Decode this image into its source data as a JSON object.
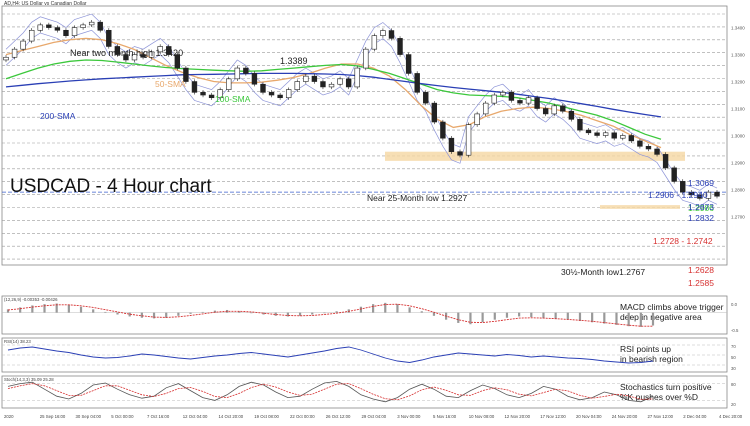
{
  "header": {
    "symbol_text": "AD,H4: US Dollar vs Canadian Dollar"
  },
  "chart_data": {
    "type": "line",
    "title": "USDCAD - 4 Hour chart",
    "ylim": [
      1.252,
      1.348
    ],
    "y_ticks": [
      1.27,
      1.28,
      1.29,
      1.3,
      1.31,
      1.32,
      1.33,
      1.34
    ],
    "x_labels": [
      "2020",
      "25 Sep 16:00",
      "30 Sep 04:00",
      "5 Oct 00:00",
      "7 Oct 16:00",
      "12 Oct 04:00",
      "14 Oct 20:00",
      "19 Oct 08:00",
      "22 Oct 00:00",
      "26 Oct 12:00",
      "29 Oct 04:00",
      "3 Nov 00:00",
      "5 Nov 16:00",
      "10 Nov 08:00",
      "12 Nov 20:00",
      "17 Nov 12:00",
      "20 Nov 04:00",
      "24 Nov 20:00",
      "27 Nov 12:00",
      "2 Dec 04:00",
      "4 Dec 20:00"
    ],
    "price": [
      1.329,
      1.332,
      1.335,
      1.339,
      1.341,
      1.34,
      1.339,
      1.337,
      1.34,
      1.341,
      1.342,
      1.339,
      1.333,
      1.33,
      1.328,
      1.33,
      1.329,
      1.331,
      1.333,
      1.33,
      1.325,
      1.32,
      1.316,
      1.315,
      1.314,
      1.317,
      1.321,
      1.325,
      1.323,
      1.319,
      1.316,
      1.315,
      1.314,
      1.317,
      1.32,
      1.322,
      1.32,
      1.318,
      1.319,
      1.321,
      1.318,
      1.325,
      1.332,
      1.337,
      1.3389,
      1.336,
      1.33,
      1.323,
      1.316,
      1.312,
      1.305,
      1.299,
      1.294,
      1.2927,
      1.304,
      1.308,
      1.312,
      1.315,
      1.316,
      1.313,
      1.312,
      1.314,
      1.31,
      1.308,
      1.311,
      1.309,
      1.306,
      1.302,
      1.301,
      1.3,
      1.301,
      1.299,
      1.3,
      1.298,
      1.296,
      1.295,
      1.293,
      1.288,
      1.283,
      1.279,
      1.278,
      1.2767,
      1.279,
      1.2775
    ],
    "series": [
      {
        "name": "50-SMA",
        "color": "#e8a86c",
        "values": [
          1.33,
          1.3315,
          1.333,
          1.3345,
          1.3355,
          1.336,
          1.3355,
          1.334,
          1.332,
          1.329,
          1.326,
          1.3235,
          1.3215,
          1.32,
          1.3195,
          1.3195,
          1.3198,
          1.3205,
          1.3215,
          1.323,
          1.325,
          1.3265,
          1.3265,
          1.325,
          1.322,
          1.317,
          1.311,
          1.306,
          1.303,
          1.304,
          1.307,
          1.309,
          1.31,
          1.3105,
          1.31,
          1.309,
          1.3075,
          1.3055,
          1.3035,
          1.3005,
          1.298,
          1.2955
        ]
      },
      {
        "name": "100-SMA",
        "color": "#3cc83c",
        "values": [
          1.321,
          1.323,
          1.325,
          1.3265,
          1.3275,
          1.328,
          1.3278,
          1.3272,
          1.3265,
          1.3258,
          1.3252,
          1.3248,
          1.3245,
          1.3242,
          1.324,
          1.3238,
          1.324,
          1.3245,
          1.325,
          1.3255,
          1.326,
          1.3263,
          1.3258,
          1.3245,
          1.323,
          1.321,
          1.319,
          1.317,
          1.3158,
          1.315,
          1.3148,
          1.3145,
          1.314,
          1.313,
          1.312,
          1.3105,
          1.309,
          1.3075,
          1.3055,
          1.303,
          1.3005,
          1.2986
        ]
      },
      {
        "name": "200-SMA",
        "color": "#2a3fb5",
        "values": [
          1.318,
          1.3186,
          1.3192,
          1.3197,
          1.3202,
          1.3206,
          1.321,
          1.3213,
          1.3216,
          1.3219,
          1.3222,
          1.3225,
          1.3226,
          1.3227,
          1.3228,
          1.3229,
          1.323,
          1.323,
          1.323,
          1.3229,
          1.3228,
          1.3226,
          1.3222,
          1.3216,
          1.3208,
          1.32,
          1.3192,
          1.3185,
          1.3178,
          1.3172,
          1.3166,
          1.316,
          1.3153,
          1.3145,
          1.3137,
          1.3128,
          1.3118,
          1.3108,
          1.3097,
          1.3087,
          1.3078,
          1.3069
        ]
      }
    ],
    "annotations": [
      {
        "text": "Near two month high 1.3420",
        "color": "#222222"
      },
      {
        "text": "1.3389",
        "color": "#222222"
      },
      {
        "text": "Near 25-Month low 1.2927",
        "color": "#222222"
      },
      {
        "text": "30½-Month low1.2767",
        "color": "#222222"
      }
    ],
    "legend_labels": [
      {
        "text": "50-SMA",
        "color": "#e8a86c"
      },
      {
        "text": "100-SMA",
        "color": "#3cc83c"
      },
      {
        "text": "200-SMA",
        "color": "#2a3fb5"
      }
    ],
    "zones": [
      {
        "from": 1.2906,
        "to": 1.294,
        "color": "#f5d7a3"
      },
      {
        "from": 1.2728,
        "to": 1.2742,
        "color": "#f5d7a3"
      }
    ],
    "levels": [
      {
        "text": "1.3069",
        "value": 1.3069,
        "color": "#2a3fb5"
      },
      {
        "text": "1.2986",
        "value": 1.2986,
        "color": "#3cc83c"
      },
      {
        "text": "1.2906 - 1.2940",
        "value": 1.2923,
        "color": "#2a3fb5"
      },
      {
        "text": "1.2873",
        "value": 1.2873,
        "color": "#2a3fb5"
      },
      {
        "text": "1.2832",
        "value": 1.2832,
        "color": "#2a3fb5"
      },
      {
        "text": "1.2728 - 1.2742",
        "value": 1.2735,
        "color": "#d63030"
      },
      {
        "text": "1.2628",
        "value": 1.2628,
        "color": "#d63030"
      },
      {
        "text": "1.2585",
        "value": 1.2585,
        "color": "#d63030"
      }
    ],
    "support_line": 1.279,
    "indicators": [
      {
        "id": "macd",
        "header": "(12,26,9) -0.00353 -0.00426",
        "caption_lines": [
          "MACD climbs above trigger",
          "deep in negative area"
        ],
        "tick_labels": [
          "0.0",
          "-0.5"
        ],
        "histogram": [
          0.1,
          0.16,
          0.22,
          0.26,
          0.28,
          0.24,
          0.18,
          0.1,
          0.02,
          -0.06,
          -0.12,
          -0.16,
          -0.18,
          -0.16,
          -0.1,
          -0.04,
          0.02,
          0.06,
          0.08,
          0.04,
          -0.02,
          -0.06,
          -0.1,
          -0.12,
          -0.1,
          -0.06,
          -0.02,
          0.04,
          0.1,
          0.18,
          0.26,
          0.3,
          0.26,
          0.16,
          0.04,
          -0.1,
          -0.22,
          -0.32,
          -0.36,
          -0.3,
          -0.22,
          -0.16,
          -0.12,
          -0.14,
          -0.18,
          -0.2,
          -0.22,
          -0.26,
          -0.3,
          -0.34,
          -0.38,
          -0.42,
          -0.44,
          -0.4
        ],
        "signal": [
          0.08,
          0.12,
          0.17,
          0.21,
          0.24,
          0.24,
          0.21,
          0.16,
          0.09,
          0.02,
          -0.05,
          -0.1,
          -0.14,
          -0.15,
          -0.13,
          -0.09,
          -0.04,
          0.01,
          0.04,
          0.04,
          0.02,
          -0.02,
          -0.06,
          -0.09,
          -0.1,
          -0.09,
          -0.06,
          -0.02,
          0.04,
          0.11,
          0.19,
          0.25,
          0.26,
          0.21,
          0.12,
          0.01,
          -0.11,
          -0.22,
          -0.3,
          -0.31,
          -0.27,
          -0.22,
          -0.17,
          -0.16,
          -0.17,
          -0.19,
          -0.21,
          -0.24,
          -0.27,
          -0.31,
          -0.35,
          -0.39,
          -0.42,
          -0.42
        ],
        "range": [
          -0.6,
          0.45
        ]
      },
      {
        "id": "rsi",
        "header": "RSI(14) 38.23",
        "caption_lines": [
          "RSI points up",
          "in bearish region"
        ],
        "tick_labels": [
          "70",
          "50",
          "30"
        ],
        "values": [
          60,
          64,
          66,
          62,
          58,
          55,
          50,
          46,
          44,
          45,
          48,
          52,
          50,
          47,
          44,
          42,
          45,
          48,
          50,
          53,
          55,
          52,
          49,
          46,
          50,
          54,
          58,
          63,
          66,
          60,
          52,
          44,
          38,
          35,
          40,
          46,
          50,
          54,
          52,
          50,
          48,
          51,
          49,
          46,
          48,
          46,
          44,
          43,
          41,
          38,
          36,
          34,
          35,
          38
        ],
        "range": [
          20,
          80
        ]
      },
      {
        "id": "stoch",
        "header": "Stoch(14,3,3) 35.09 25.28",
        "caption_lines": [
          "Stochastics turn positive",
          "%K pushes over %D"
        ],
        "tick_labels": [
          "80",
          "20"
        ],
        "k": [
          70,
          80,
          85,
          60,
          35,
          25,
          45,
          75,
          82,
          60,
          40,
          28,
          35,
          65,
          80,
          55,
          30,
          20,
          40,
          70,
          85,
          75,
          50,
          30,
          35,
          60,
          82,
          88,
          70,
          40,
          25,
          15,
          30,
          60,
          78,
          60,
          35,
          30,
          55,
          75,
          62,
          40,
          30,
          45,
          70,
          60,
          35,
          22,
          30,
          50,
          40,
          20,
          15,
          35
        ],
        "d": [
          62,
          72,
          80,
          72,
          55,
          38,
          38,
          55,
          72,
          72,
          56,
          40,
          34,
          45,
          62,
          66,
          52,
          34,
          30,
          45,
          66,
          78,
          68,
          50,
          38,
          42,
          60,
          78,
          80,
          62,
          42,
          26,
          22,
          36,
          58,
          68,
          56,
          40,
          38,
          55,
          65,
          58,
          42,
          36,
          48,
          60,
          54,
          38,
          28,
          34,
          42,
          36,
          24,
          25
        ],
        "range": [
          0,
          100
        ]
      }
    ]
  }
}
